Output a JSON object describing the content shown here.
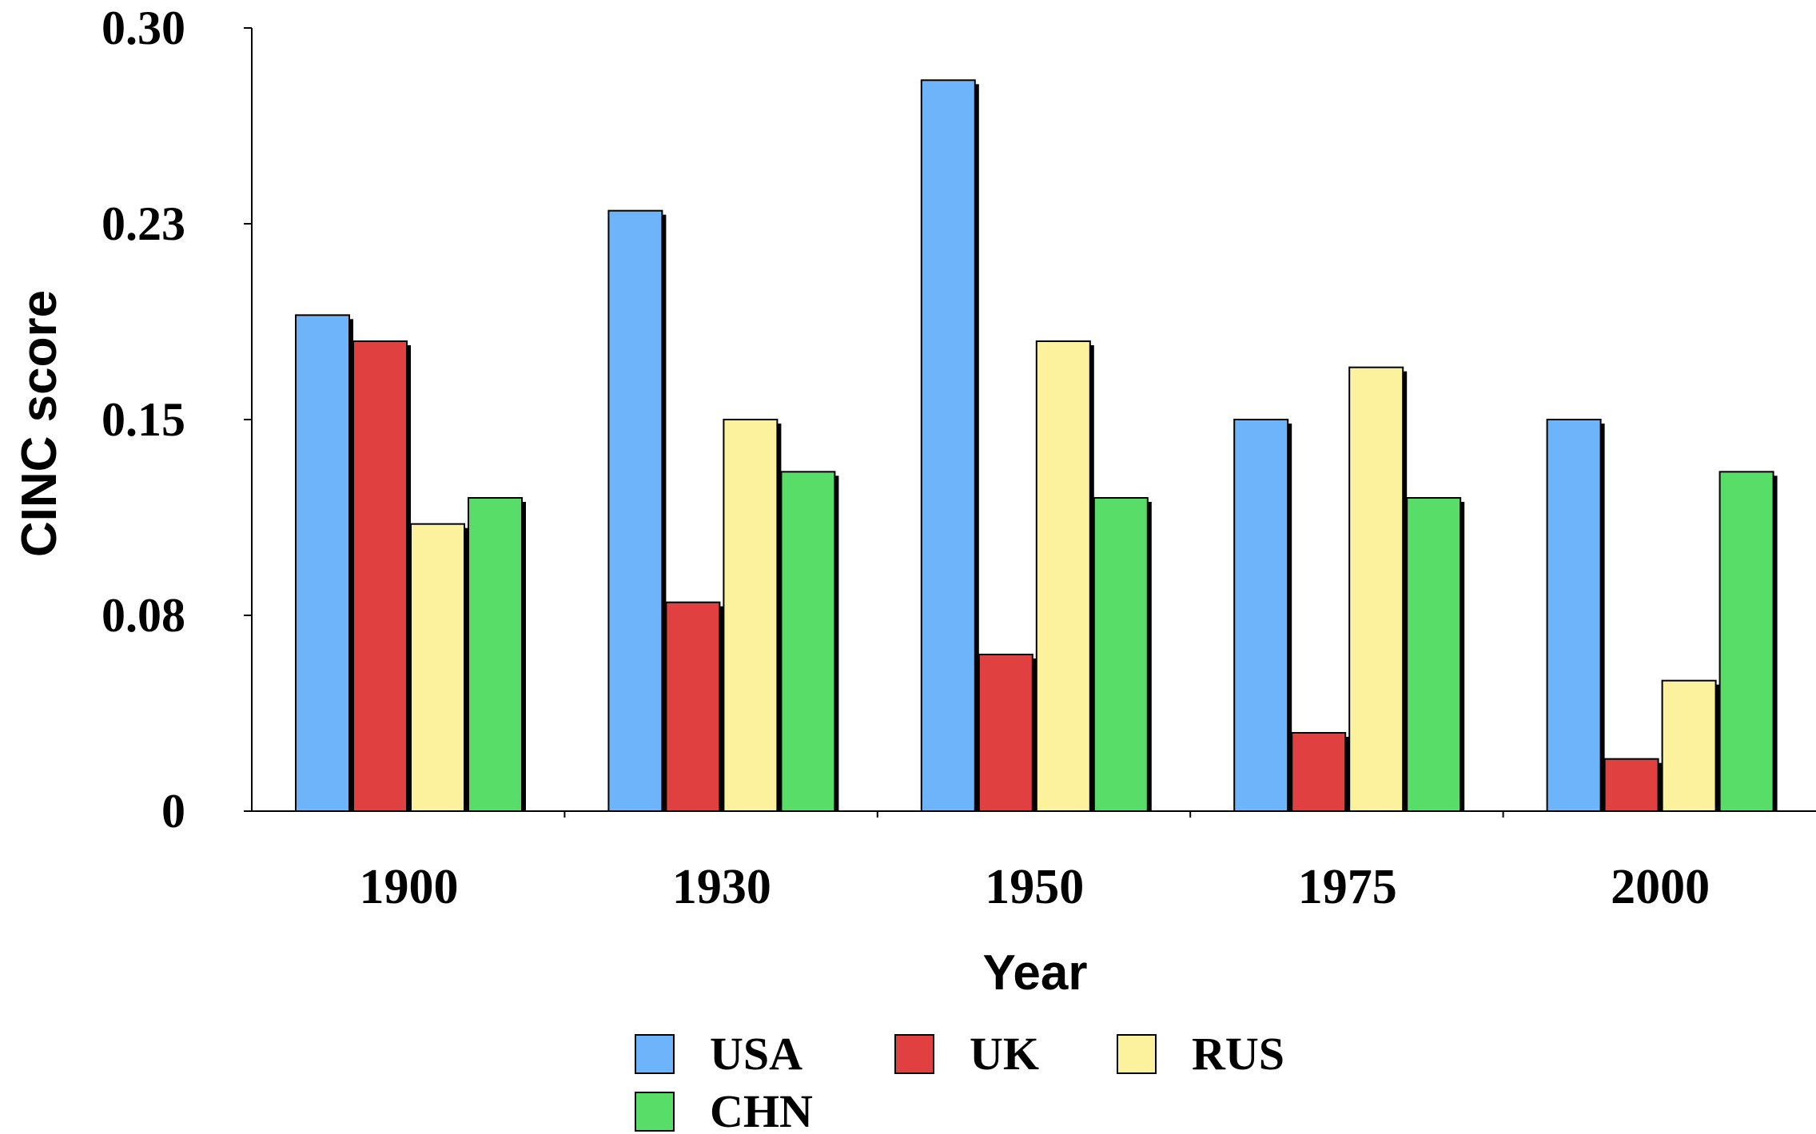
{
  "chart_data": {
    "type": "bar",
    "xlabel": "Year",
    "ylabel": "CINC score",
    "ylim": [
      0,
      0.3
    ],
    "yticks": [
      {
        "value": 0,
        "label": "0"
      },
      {
        "value": 0.075,
        "label": "0.08"
      },
      {
        "value": 0.15,
        "label": "0.15"
      },
      {
        "value": 0.225,
        "label": "0.23"
      },
      {
        "value": 0.3,
        "label": "0.30"
      }
    ],
    "categories": [
      "1900",
      "1930",
      "1950",
      "1975",
      "2000"
    ],
    "series": [
      {
        "name": "USA",
        "color": "#6eb4fb",
        "values": [
          0.19,
          0.23,
          0.28,
          0.15,
          0.15
        ]
      },
      {
        "name": "UK",
        "color": "#e04040",
        "values": [
          0.18,
          0.08,
          0.06,
          0.03,
          0.02
        ]
      },
      {
        "name": "RUS",
        "color": "#fcf29e",
        "values": [
          0.11,
          0.15,
          0.18,
          0.17,
          0.05
        ]
      },
      {
        "name": "CHN",
        "color": "#58dd68",
        "values": [
          0.12,
          0.13,
          0.12,
          0.12,
          0.13
        ]
      }
    ],
    "grid": false,
    "legend_position": "bottom"
  }
}
